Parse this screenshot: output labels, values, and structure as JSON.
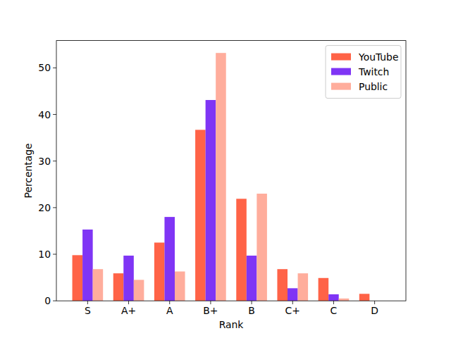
{
  "chart_data": {
    "type": "bar",
    "x_label": "Rank",
    "y_label": "Percentage",
    "categories": [
      "S",
      "A+",
      "A",
      "B+",
      "B",
      "C+",
      "C",
      "D"
    ],
    "series": [
      {
        "name": "YouTube",
        "color": "#ff6347",
        "values": [
          9.8,
          5.9,
          12.5,
          36.7,
          21.9,
          6.8,
          4.9,
          1.5
        ]
      },
      {
        "name": "Twitch",
        "color": "#7f35f5",
        "values": [
          15.3,
          9.7,
          18.0,
          43.1,
          9.7,
          2.7,
          1.4,
          0
        ]
      },
      {
        "name": "Public",
        "color": "#ffad9c",
        "values": [
          6.8,
          4.5,
          6.3,
          53.2,
          23.0,
          5.9,
          0.5,
          0
        ]
      }
    ],
    "ylim": [
      0,
      55.86
    ],
    "yticks": [
      0,
      10,
      20,
      30,
      40,
      50
    ],
    "grid": false,
    "legend": "upper-right"
  }
}
